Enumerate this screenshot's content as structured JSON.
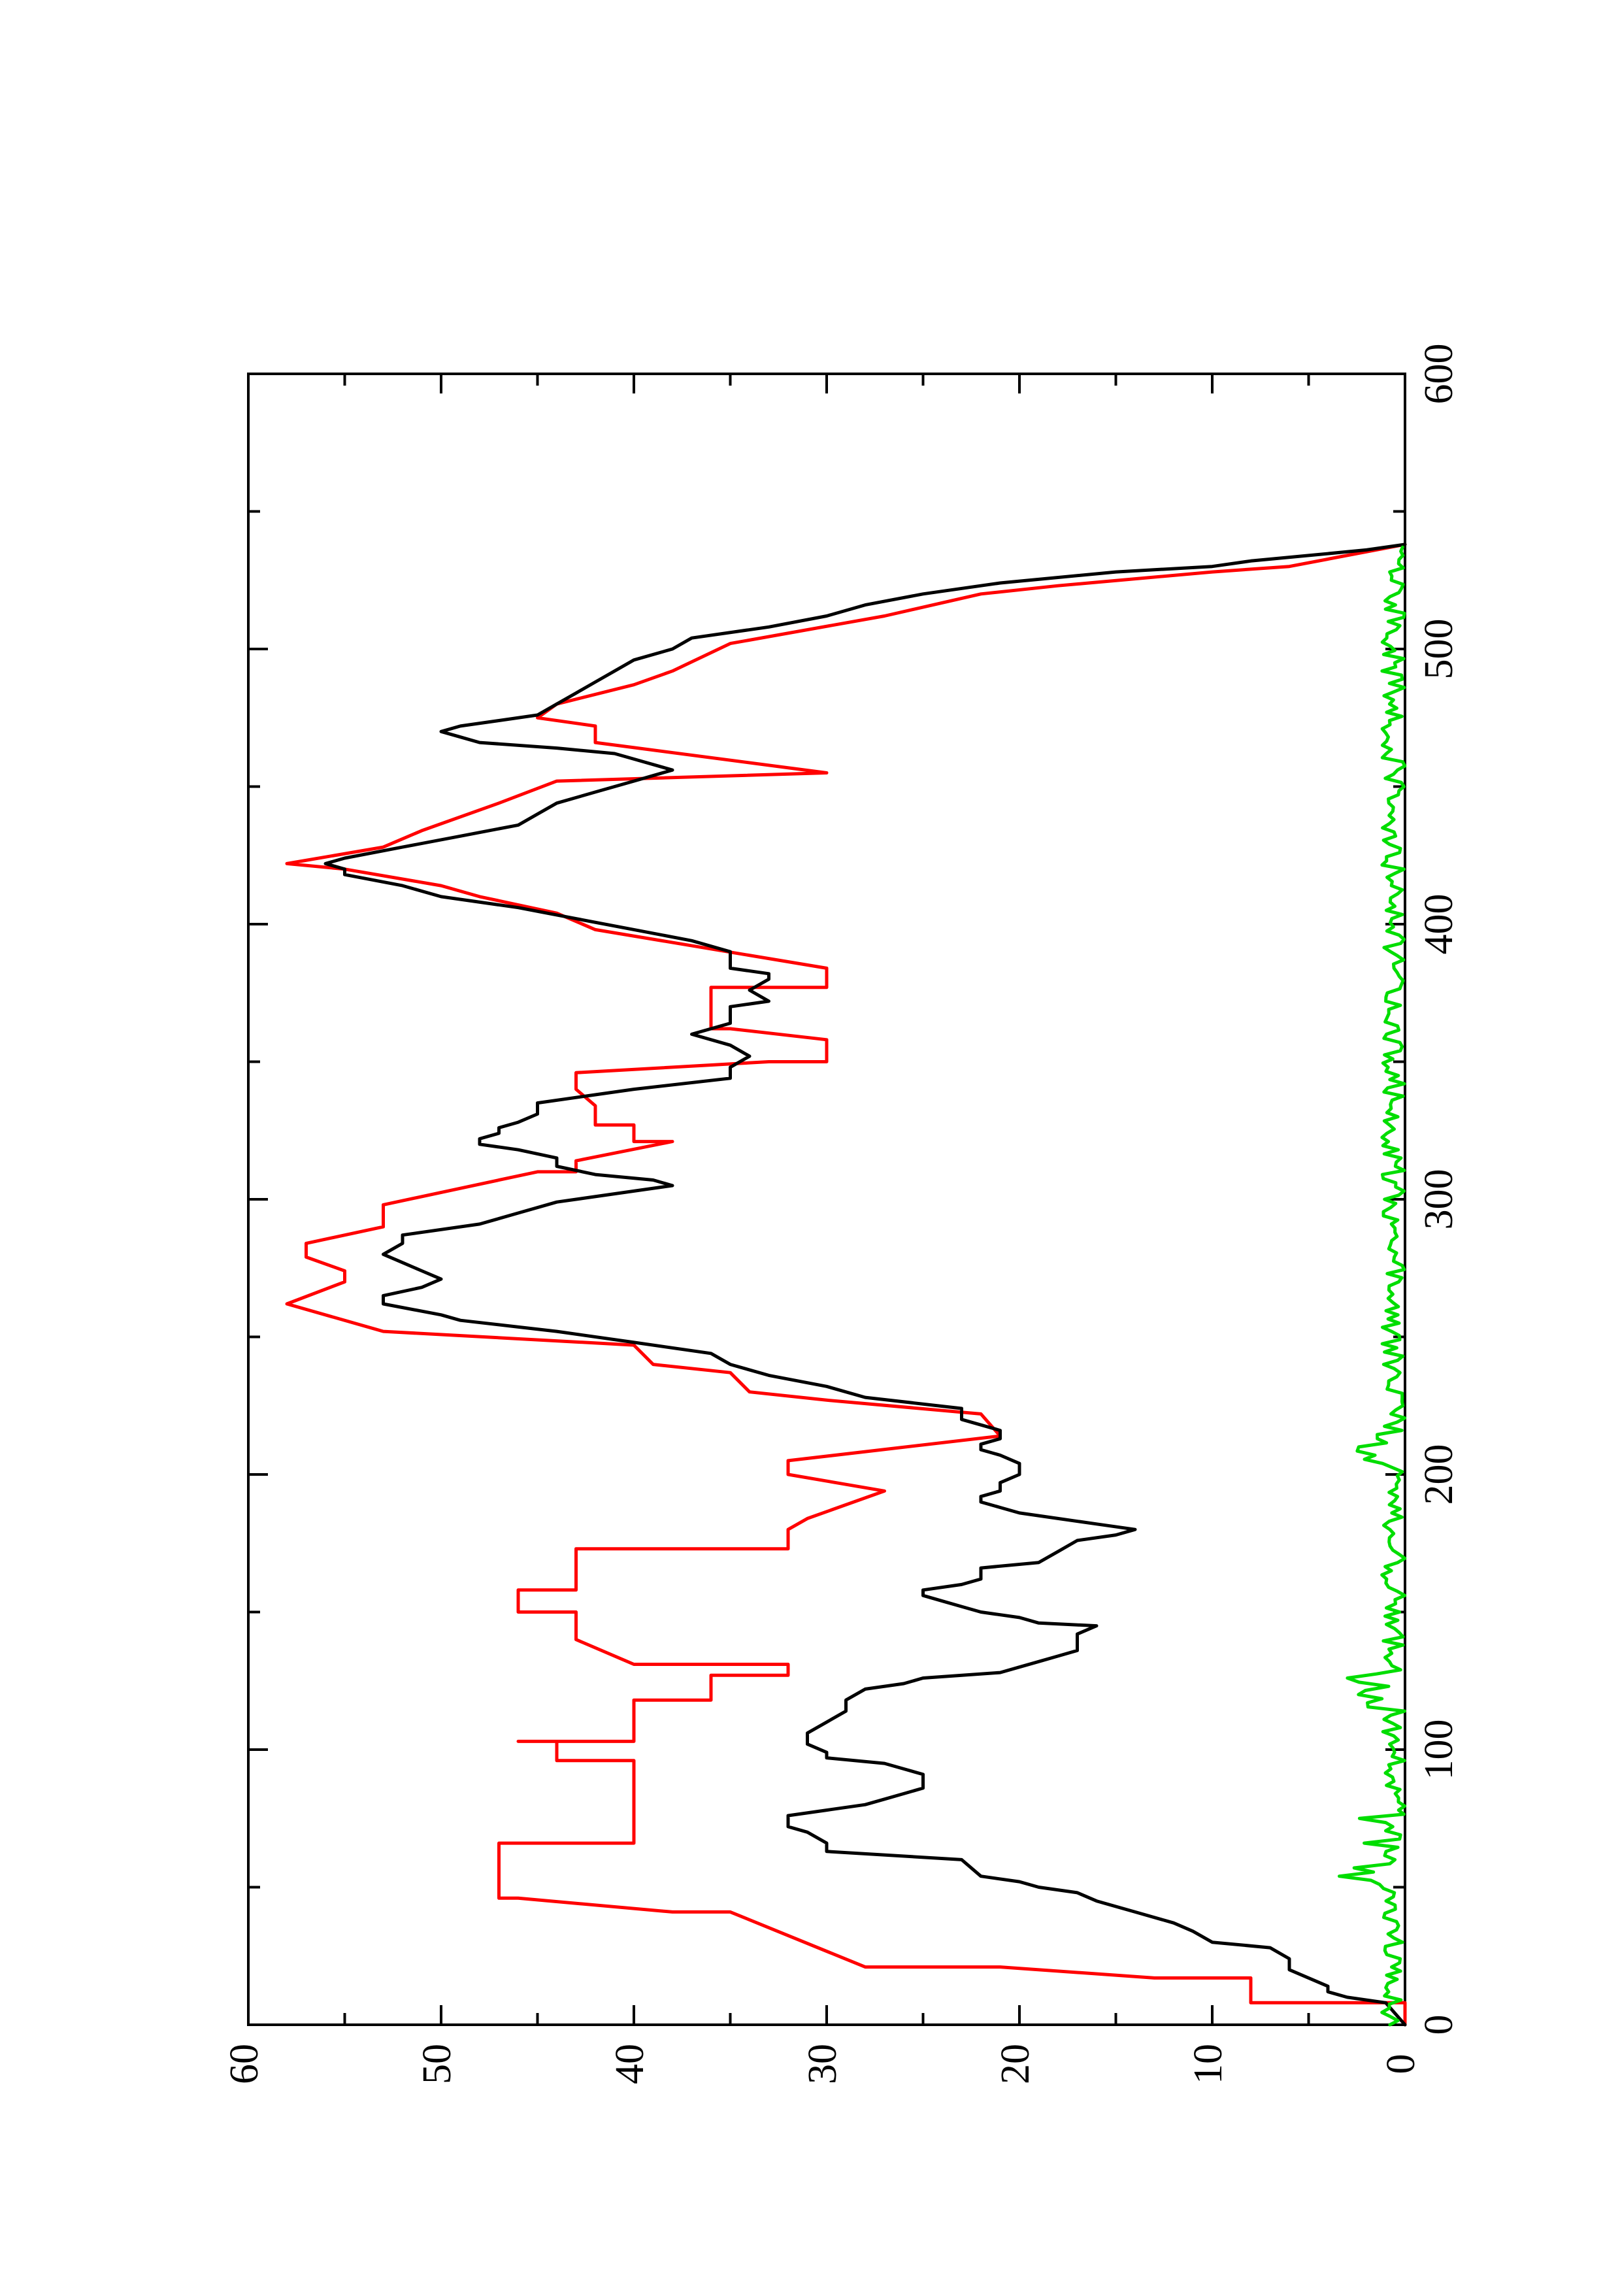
{
  "colors": {
    "background": "#ffffff",
    "axes": "#000000",
    "black_series": "#000000",
    "red_series": "#ff0000",
    "green_series": "#00dd00"
  },
  "chart_data": {
    "type": "line",
    "orientation": "rotated-90-counterclockwise",
    "title": "",
    "xlabel": "",
    "ylabel": "",
    "xlim": [
      0,
      600
    ],
    "ylim": [
      0,
      60
    ],
    "x_ticks": [
      "0",
      "100",
      "200",
      "300",
      "400",
      "500",
      "600"
    ],
    "y_ticks": [
      "0",
      "10",
      "20",
      "30",
      "40",
      "50",
      "60"
    ],
    "grid": false,
    "legend": "none",
    "series": [
      {
        "color_key": "red_series",
        "style": "step",
        "points": [
          [
            0,
            0
          ],
          [
            8,
            0
          ],
          [
            8,
            8
          ],
          [
            17,
            8
          ],
          [
            17,
            13
          ],
          [
            21,
            21
          ],
          [
            21,
            28
          ],
          [
            41,
            35
          ],
          [
            41,
            38
          ],
          [
            46,
            46
          ],
          [
            46,
            47
          ],
          [
            66,
            47
          ],
          [
            66,
            40
          ],
          [
            80,
            40
          ],
          [
            80,
            40
          ],
          [
            96,
            40
          ],
          [
            96,
            44
          ],
          [
            103,
            44
          ],
          [
            103,
            46
          ],
          [
            103,
            40
          ],
          [
            118,
            40
          ],
          [
            118,
            36
          ],
          [
            127,
            36
          ],
          [
            127,
            32
          ],
          [
            131,
            32
          ],
          [
            131,
            40
          ],
          [
            140,
            43
          ],
          [
            150,
            43
          ],
          [
            150,
            46
          ],
          [
            158,
            46
          ],
          [
            158,
            43
          ],
          [
            165,
            43
          ],
          [
            165,
            43
          ],
          [
            173,
            43
          ],
          [
            173,
            32
          ],
          [
            180,
            32
          ],
          [
            180,
            32
          ],
          [
            184,
            31
          ],
          [
            194,
            27
          ],
          [
            194,
            27
          ],
          [
            200,
            32
          ],
          [
            205,
            32
          ],
          [
            214,
            21
          ],
          [
            222,
            22
          ],
          [
            227,
            30
          ],
          [
            230,
            34
          ],
          [
            237,
            35
          ],
          [
            240,
            39
          ],
          [
            247,
            40
          ],
          [
            252,
            53
          ],
          [
            262,
            58
          ],
          [
            270,
            55
          ],
          [
            274,
            55
          ],
          [
            279,
            57
          ],
          [
            284,
            57
          ],
          [
            290,
            53
          ],
          [
            298,
            53
          ],
          [
            310,
            45
          ],
          [
            310,
            43
          ],
          [
            314,
            43
          ],
          [
            321,
            38
          ],
          [
            321,
            40
          ],
          [
            327,
            40
          ],
          [
            327,
            42
          ],
          [
            334,
            42
          ],
          [
            340,
            43
          ],
          [
            346,
            43
          ],
          [
            350,
            33
          ],
          [
            350,
            30
          ],
          [
            358,
            30
          ],
          [
            362,
            35
          ],
          [
            362,
            36
          ],
          [
            366,
            36
          ],
          [
            377,
            36
          ],
          [
            377,
            30
          ],
          [
            384,
            30
          ],
          [
            398,
            42
          ],
          [
            404,
            44
          ],
          [
            410,
            48
          ],
          [
            414,
            50
          ],
          [
            420,
            55
          ],
          [
            422,
            58
          ],
          [
            428,
            53
          ],
          [
            434,
            51
          ],
          [
            444,
            47
          ],
          [
            452,
            44
          ],
          [
            455,
            30
          ],
          [
            466,
            42
          ],
          [
            472,
            42
          ],
          [
            475,
            45
          ],
          [
            480,
            44
          ],
          [
            487,
            40
          ],
          [
            492,
            38
          ],
          [
            502,
            35
          ],
          [
            512,
            27
          ],
          [
            520,
            22
          ],
          [
            523,
            18
          ],
          [
            528,
            10
          ],
          [
            530,
            6
          ],
          [
            538,
            0
          ]
        ]
      },
      {
        "color_key": "black_series",
        "style": "line",
        "points": [
          [
            0,
            0
          ],
          [
            8,
            1
          ],
          [
            10,
            3
          ],
          [
            12,
            4
          ],
          [
            14,
            4
          ],
          [
            17,
            5
          ],
          [
            20,
            6
          ],
          [
            24,
            6
          ],
          [
            28,
            7
          ],
          [
            30,
            10
          ],
          [
            34,
            11
          ],
          [
            37,
            12
          ],
          [
            41,
            14
          ],
          [
            45,
            16
          ],
          [
            48,
            17
          ],
          [
            50,
            19
          ],
          [
            52,
            20
          ],
          [
            54,
            22
          ],
          [
            60,
            23
          ],
          [
            63,
            30
          ],
          [
            66,
            30
          ],
          [
            70,
            31
          ],
          [
            72,
            32
          ],
          [
            74,
            32
          ],
          [
            76,
            32
          ],
          [
            78,
            30
          ],
          [
            80,
            28
          ],
          [
            82,
            27
          ],
          [
            84,
            26
          ],
          [
            86,
            25
          ],
          [
            88,
            25
          ],
          [
            91,
            25
          ],
          [
            93,
            26
          ],
          [
            95,
            27
          ],
          [
            97,
            30
          ],
          [
            99,
            30
          ],
          [
            102,
            31
          ],
          [
            104,
            31
          ],
          [
            106,
            31
          ],
          [
            110,
            30
          ],
          [
            114,
            29
          ],
          [
            118,
            29
          ],
          [
            122,
            28
          ],
          [
            124,
            26
          ],
          [
            126,
            25
          ],
          [
            128,
            21
          ],
          [
            130,
            20
          ],
          [
            132,
            19
          ],
          [
            134,
            18
          ],
          [
            136,
            17
          ],
          [
            139,
            17
          ],
          [
            142,
            17
          ],
          [
            145,
            16
          ],
          [
            146,
            19
          ],
          [
            148,
            20
          ],
          [
            150,
            22
          ],
          [
            152,
            23
          ],
          [
            154,
            24
          ],
          [
            156,
            25
          ],
          [
            158,
            25
          ],
          [
            160,
            23
          ],
          [
            162,
            22
          ],
          [
            164,
            22
          ],
          [
            166,
            22
          ],
          [
            168,
            19
          ],
          [
            172,
            18
          ],
          [
            176,
            17
          ],
          [
            178,
            15
          ],
          [
            180,
            14
          ],
          [
            182,
            16
          ],
          [
            184,
            18
          ],
          [
            186,
            20
          ],
          [
            188,
            21
          ],
          [
            190,
            22
          ],
          [
            192,
            22
          ],
          [
            194,
            21
          ],
          [
            197,
            21
          ],
          [
            200,
            20
          ],
          [
            202,
            20
          ],
          [
            204,
            20
          ],
          [
            207,
            21
          ],
          [
            209,
            22
          ],
          [
            211,
            22
          ],
          [
            213,
            21
          ],
          [
            216,
            21
          ],
          [
            220,
            23
          ],
          [
            224,
            23
          ],
          [
            228,
            28
          ],
          [
            232,
            30
          ],
          [
            236,
            33
          ],
          [
            240,
            35
          ],
          [
            244,
            36
          ],
          [
            248,
            40
          ],
          [
            252,
            44
          ],
          [
            256,
            49
          ],
          [
            258,
            50
          ],
          [
            262,
            53
          ],
          [
            265,
            53
          ],
          [
            268,
            51
          ],
          [
            271,
            50
          ],
          [
            274,
            51
          ],
          [
            277,
            52
          ],
          [
            280,
            53
          ],
          [
            284,
            52
          ],
          [
            287,
            52
          ],
          [
            291,
            48
          ],
          [
            295,
            46
          ],
          [
            299,
            44
          ],
          [
            303,
            40
          ],
          [
            305,
            38
          ],
          [
            307,
            39
          ],
          [
            309,
            42
          ],
          [
            312,
            44
          ],
          [
            315,
            44
          ],
          [
            318,
            46
          ],
          [
            320,
            48
          ],
          [
            322,
            48
          ],
          [
            324,
            47
          ],
          [
            326,
            47
          ],
          [
            328,
            46
          ],
          [
            331,
            45
          ],
          [
            335,
            45
          ],
          [
            338,
            42
          ],
          [
            340,
            40
          ],
          [
            344,
            35
          ],
          [
            348,
            35
          ],
          [
            352,
            34
          ],
          [
            356,
            35
          ],
          [
            360,
            37
          ],
          [
            362,
            36
          ],
          [
            364,
            35
          ],
          [
            366,
            35
          ],
          [
            368,
            35
          ],
          [
            370,
            35
          ],
          [
            372,
            33
          ],
          [
            376,
            34
          ],
          [
            380,
            33
          ],
          [
            382,
            33
          ],
          [
            384,
            35
          ],
          [
            386,
            35
          ],
          [
            390,
            35
          ],
          [
            394,
            37
          ],
          [
            398,
            40
          ],
          [
            402,
            43
          ],
          [
            406,
            46
          ],
          [
            410,
            50
          ],
          [
            414,
            52
          ],
          [
            418,
            55
          ],
          [
            420,
            55
          ],
          [
            422,
            56
          ],
          [
            424,
            55
          ],
          [
            428,
            52
          ],
          [
            432,
            49
          ],
          [
            436,
            46
          ],
          [
            440,
            45
          ],
          [
            444,
            44
          ],
          [
            448,
            42
          ],
          [
            452,
            40
          ],
          [
            456,
            38
          ],
          [
            460,
            40
          ],
          [
            462,
            41
          ],
          [
            464,
            44
          ],
          [
            466,
            48
          ],
          [
            468,
            49
          ],
          [
            470,
            50
          ],
          [
            472,
            49
          ],
          [
            474,
            47
          ],
          [
            476,
            45
          ],
          [
            480,
            44
          ],
          [
            484,
            43
          ],
          [
            488,
            42
          ],
          [
            492,
            41
          ],
          [
            496,
            40
          ],
          [
            500,
            38
          ],
          [
            504,
            37
          ],
          [
            508,
            33
          ],
          [
            512,
            30
          ],
          [
            516,
            28
          ],
          [
            520,
            25
          ],
          [
            524,
            21
          ],
          [
            528,
            15
          ],
          [
            530,
            10
          ],
          [
            532,
            8
          ],
          [
            534,
            5
          ],
          [
            536,
            2
          ],
          [
            538,
            0
          ]
        ]
      },
      {
        "color_key": "green_series",
        "style": "line",
        "points": "noise"
      }
    ]
  }
}
